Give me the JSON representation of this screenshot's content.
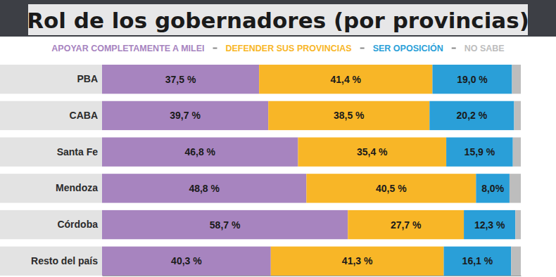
{
  "chart_data": {
    "type": "bar",
    "orientation": "horizontal",
    "stacked": true,
    "title": "Rol de los gobernadores (por provincias)",
    "categories": [
      "PBA",
      "CABA",
      "Santa Fe",
      "Mendoza",
      "Córdoba",
      "Resto del país"
    ],
    "xlim": [
      0,
      100
    ],
    "xticks": [],
    "tick_labels": "y",
    "grid": false,
    "series": [
      {
        "name": "APOYAR COMPLETAMENTE A MILEI",
        "color": "#a784bf",
        "data_labels": true,
        "values": [
          37.5,
          39.7,
          46.8,
          48.8,
          58.7,
          40.3
        ],
        "value_labels": [
          "37,5 %",
          "39,7 %",
          "46,8 %",
          "48,8 %",
          "58,7 %",
          "40,3 %"
        ]
      },
      {
        "name": "DEFENDER SUS PROVINCIAS",
        "color": "#f8b627",
        "data_labels": true,
        "values": [
          41.4,
          38.5,
          35.4,
          40.5,
          27.7,
          41.3
        ],
        "value_labels": [
          "41,4 %",
          "38,5 %",
          "35,4 %",
          "40,5 %",
          "27,7 %",
          "41,3 %"
        ]
      },
      {
        "name": "SER OPOSICIÓN",
        "color": "#2a9fd8",
        "data_labels": true,
        "values": [
          19.0,
          20.2,
          15.9,
          8.0,
          12.3,
          16.1
        ],
        "value_labels": [
          "19,0 %",
          "20,2 %",
          "15,9 %",
          "8,0%",
          "12,3 %",
          "16,1 %"
        ]
      },
      {
        "name": "NO SABE",
        "color": "#bdbdbd",
        "data_labels": false,
        "values": [
          2.1,
          1.6,
          1.9,
          2.7,
          1.3,
          2.3
        ]
      }
    ]
  }
}
